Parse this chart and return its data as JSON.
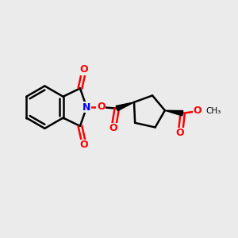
{
  "background_color": "#ebebeb",
  "bond_color": "#000000",
  "N_color": "#0000ff",
  "O_color": "#ff0000",
  "line_width": 1.8,
  "figsize": [
    3.0,
    3.0
  ],
  "dpi": 100,
  "xlim": [
    0,
    10
  ],
  "ylim": [
    1,
    9
  ]
}
